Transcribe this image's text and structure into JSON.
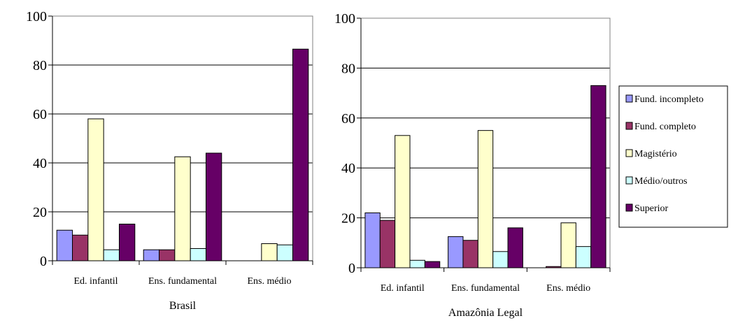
{
  "chart_data": [
    {
      "type": "bar",
      "xlabel": "Brasil",
      "categories": [
        "Ed. infantil",
        "Ens. fundamental",
        "Ens. médio"
      ],
      "ylim": [
        0,
        100
      ],
      "yticks": [
        0,
        20,
        40,
        60,
        80,
        100
      ],
      "grid": true,
      "series": [
        {
          "name": "Fund. incompleto",
          "values": [
            12.5,
            4.5,
            0
          ]
        },
        {
          "name": "Fund. completo",
          "values": [
            10.5,
            4.5,
            0
          ]
        },
        {
          "name": "Magistério",
          "values": [
            58,
            42.5,
            7
          ]
        },
        {
          "name": "Médio/outros",
          "values": [
            4.5,
            5,
            6.5
          ]
        },
        {
          "name": "Superior",
          "values": [
            15,
            44,
            86.5
          ]
        }
      ]
    },
    {
      "type": "bar",
      "xlabel": "Amazônia Legal",
      "categories": [
        "Ed. infantil",
        "Ens. fundamental",
        "Ens. médio"
      ],
      "ylim": [
        0,
        100
      ],
      "yticks": [
        0,
        20,
        40,
        60,
        80,
        100
      ],
      "grid": true,
      "series": [
        {
          "name": "Fund. incompleto",
          "values": [
            22,
            12.5,
            0
          ]
        },
        {
          "name": "Fund. completo",
          "values": [
            19,
            11,
            0.5
          ]
        },
        {
          "name": "Magistério",
          "values": [
            53,
            55,
            18
          ]
        },
        {
          "name": "Médio/outros",
          "values": [
            3,
            6.5,
            8.5
          ]
        },
        {
          "name": "Superior",
          "values": [
            2.5,
            16,
            73
          ]
        }
      ]
    }
  ],
  "legend": {
    "position": "right",
    "items": [
      {
        "label": "Fund. incompleto",
        "color": "#9999ff"
      },
      {
        "label": "Fund. completo",
        "color": "#993366"
      },
      {
        "label": "Magistério",
        "color": "#ffffcc"
      },
      {
        "label": "Médio/outros",
        "color": "#ccffff"
      },
      {
        "label": "Superior",
        "color": "#660066"
      }
    ]
  }
}
